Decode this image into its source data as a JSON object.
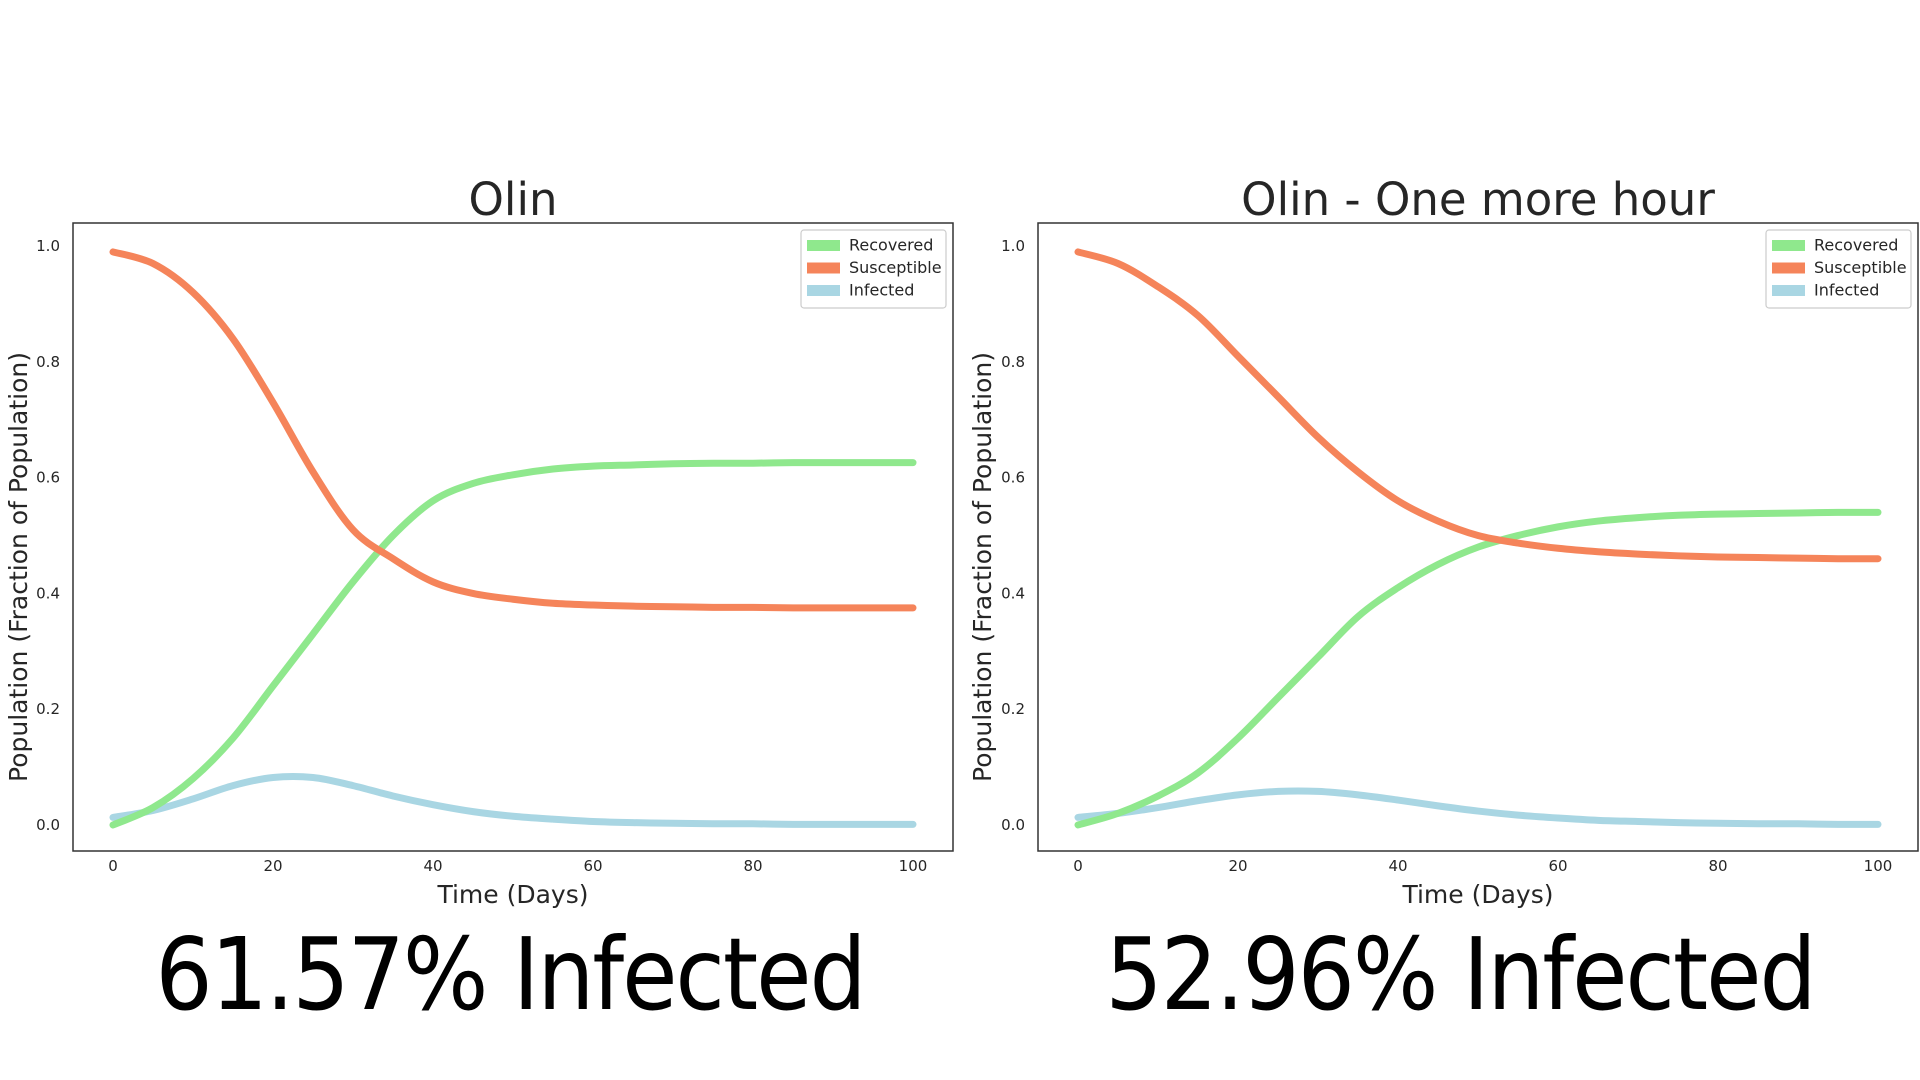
{
  "colors": {
    "recovered": "#8fe88d",
    "susceptible": "#f5845a",
    "infected": "#a9d6e3",
    "axes": "#333333",
    "text": "#262626"
  },
  "captions": {
    "left": "61.57% Infected",
    "right": "52.96% Infected"
  },
  "chart_data": [
    {
      "type": "line",
      "title": "Olin",
      "xlabel": "Time (Days)",
      "ylabel": "Population (Fraction of Population)",
      "xlim": [
        -5,
        105
      ],
      "ylim": [
        -0.045,
        1.04
      ],
      "grid": false,
      "legend_position": "top-right",
      "x_ticks": [
        "0",
        "20",
        "40",
        "60",
        "80",
        "100"
      ],
      "y_ticks": [
        "0.0",
        "0.2",
        "0.4",
        "0.6",
        "0.8",
        "1.0"
      ],
      "x": [
        0,
        5,
        10,
        15,
        20,
        25,
        30,
        35,
        40,
        45,
        50,
        55,
        60,
        65,
        70,
        75,
        80,
        85,
        90,
        95,
        100
      ],
      "series": [
        {
          "name": "Recovered",
          "color_key": "recovered",
          "values": [
            0.0,
            0.03,
            0.08,
            0.15,
            0.24,
            0.33,
            0.42,
            0.5,
            0.56,
            0.59,
            0.605,
            0.615,
            0.62,
            0.622,
            0.624,
            0.625,
            0.625,
            0.626,
            0.626,
            0.626,
            0.626
          ]
        },
        {
          "name": "Susceptible",
          "color_key": "susceptible",
          "values": [
            0.99,
            0.97,
            0.92,
            0.84,
            0.73,
            0.61,
            0.51,
            0.46,
            0.42,
            0.4,
            0.39,
            0.383,
            0.38,
            0.378,
            0.377,
            0.376,
            0.376,
            0.375,
            0.375,
            0.375,
            0.375
          ]
        },
        {
          "name": "Infected",
          "color_key": "infected",
          "values": [
            0.013,
            0.025,
            0.045,
            0.068,
            0.082,
            0.082,
            0.068,
            0.05,
            0.035,
            0.023,
            0.015,
            0.01,
            0.006,
            0.004,
            0.003,
            0.002,
            0.002,
            0.001,
            0.001,
            0.001,
            0.001
          ]
        }
      ]
    },
    {
      "type": "line",
      "title": "Olin - One more hour",
      "xlabel": "Time (Days)",
      "ylabel": "Population (Fraction of Population)",
      "xlim": [
        -5,
        105
      ],
      "ylim": [
        -0.045,
        1.04
      ],
      "grid": false,
      "legend_position": "top-right",
      "x_ticks": [
        "0",
        "20",
        "40",
        "60",
        "80",
        "100"
      ],
      "y_ticks": [
        "0.0",
        "0.2",
        "0.4",
        "0.6",
        "0.8",
        "1.0"
      ],
      "x": [
        0,
        5,
        10,
        15,
        20,
        25,
        30,
        35,
        40,
        45,
        50,
        55,
        60,
        65,
        70,
        75,
        80,
        85,
        90,
        95,
        100
      ],
      "series": [
        {
          "name": "Recovered",
          "color_key": "recovered",
          "values": [
            0.0,
            0.02,
            0.05,
            0.09,
            0.15,
            0.22,
            0.29,
            0.36,
            0.41,
            0.45,
            0.48,
            0.5,
            0.515,
            0.525,
            0.531,
            0.535,
            0.537,
            0.538,
            0.539,
            0.54,
            0.54
          ]
        },
        {
          "name": "Susceptible",
          "color_key": "susceptible",
          "values": [
            0.99,
            0.97,
            0.93,
            0.88,
            0.81,
            0.74,
            0.67,
            0.61,
            0.56,
            0.525,
            0.5,
            0.487,
            0.478,
            0.472,
            0.468,
            0.465,
            0.463,
            0.462,
            0.461,
            0.46,
            0.46
          ]
        },
        {
          "name": "Infected",
          "color_key": "infected",
          "values": [
            0.013,
            0.02,
            0.03,
            0.042,
            0.052,
            0.058,
            0.058,
            0.052,
            0.043,
            0.033,
            0.024,
            0.017,
            0.012,
            0.008,
            0.006,
            0.004,
            0.003,
            0.002,
            0.002,
            0.001,
            0.001
          ]
        }
      ]
    }
  ]
}
